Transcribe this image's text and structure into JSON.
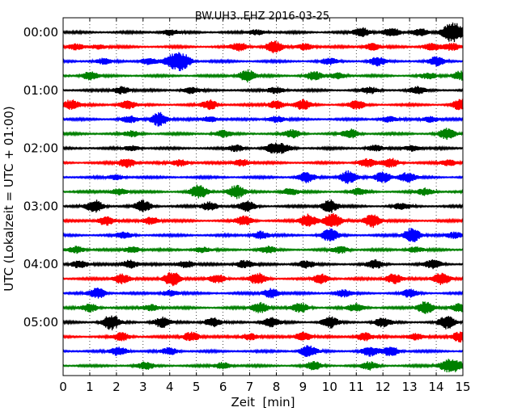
{
  "chart_data": {
    "type": "line",
    "title": "BW.UH3..EHZ 2016-03-25",
    "xlabel": "Zeit  [min]",
    "ylabel": "UTC (Lokalzeit = UTC + 01:00)",
    "xlim": [
      0,
      15
    ],
    "x_ticks": [
      "0",
      "1",
      "2",
      "3",
      "4",
      "5",
      "6",
      "7",
      "8",
      "9",
      "10",
      "11",
      "12",
      "13",
      "14",
      "15"
    ],
    "y_ticks": [
      {
        "label": "00:00",
        "trace": 0
      },
      {
        "label": "01:00",
        "trace": 4
      },
      {
        "label": "02:00",
        "trace": 8
      },
      {
        "label": "03:00",
        "trace": 12
      },
      {
        "label": "04:00",
        "trace": 16
      },
      {
        "label": "05:00",
        "trace": 20
      }
    ],
    "grid": "vertical dotted lines at each minute",
    "color_cycle": [
      "#000000",
      "#ff0000",
      "#0000ff",
      "#008000"
    ],
    "trace_interval_minutes": 15,
    "series": [
      {
        "start": "00:00",
        "color": "#000000",
        "events": [
          [
            4.0,
            0.9
          ],
          [
            7.3,
            0.8
          ],
          [
            11.2,
            1.4
          ],
          [
            12.3,
            1.3
          ],
          [
            13.4,
            1.2
          ],
          [
            14.5,
            2.0
          ],
          [
            14.8,
            1.6
          ]
        ]
      },
      {
        "start": "00:15",
        "color": "#ff0000",
        "events": [
          [
            0.5,
            0.8
          ],
          [
            1.3,
            0.7
          ],
          [
            6.6,
            1.2
          ],
          [
            7.9,
            1.8
          ],
          [
            9.1,
            1.0
          ],
          [
            11.6,
            1.0
          ],
          [
            13.8,
            1.1
          ],
          [
            14.6,
            1.0
          ]
        ]
      },
      {
        "start": "00:30",
        "color": "#0000ff",
        "events": [
          [
            1.5,
            0.8
          ],
          [
            3.2,
            1.0
          ],
          [
            4.1,
            1.7
          ],
          [
            4.5,
            2.2
          ],
          [
            10.0,
            0.9
          ],
          [
            11.8,
            1.2
          ],
          [
            14.0,
            1.2
          ]
        ]
      },
      {
        "start": "00:45",
        "color": "#008000",
        "events": [
          [
            1.0,
            1.2
          ],
          [
            6.9,
            1.9
          ],
          [
            9.4,
            1.2
          ],
          [
            10.3,
            0.9
          ],
          [
            13.7,
            0.8
          ],
          [
            14.9,
            1.4
          ]
        ]
      },
      {
        "start": "01:00",
        "color": "#000000",
        "events": [
          [
            2.2,
            1.1
          ],
          [
            4.8,
            0.9
          ],
          [
            8.0,
            1.0
          ],
          [
            11.5,
            0.9
          ],
          [
            13.3,
            1.0
          ]
        ]
      },
      {
        "start": "01:15",
        "color": "#ff0000",
        "events": [
          [
            0.3,
            1.5
          ],
          [
            2.4,
            1.3
          ],
          [
            5.5,
            1.4
          ],
          [
            8.0,
            1.2
          ],
          [
            9.0,
            1.4
          ],
          [
            11.0,
            1.2
          ],
          [
            14.9,
            1.6
          ]
        ]
      },
      {
        "start": "01:30",
        "color": "#0000ff",
        "events": [
          [
            2.5,
            0.9
          ],
          [
            3.6,
            2.1
          ],
          [
            5.5,
            0.8
          ],
          [
            8.0,
            0.9
          ],
          [
            12.2,
            0.8
          ],
          [
            13.8,
            0.9
          ]
        ]
      },
      {
        "start": "01:45",
        "color": "#008000",
        "events": [
          [
            2.6,
            0.8
          ],
          [
            6.0,
            0.9
          ],
          [
            8.6,
            1.1
          ],
          [
            10.8,
            1.3
          ],
          [
            14.4,
            1.5
          ]
        ]
      },
      {
        "start": "02:00",
        "color": "#000000",
        "events": [
          [
            2.6,
            0.7
          ],
          [
            6.5,
            0.9
          ],
          [
            7.9,
            1.3
          ],
          [
            8.3,
            0.9
          ],
          [
            11.7,
            0.8
          ],
          [
            13.1,
            0.9
          ]
        ]
      },
      {
        "start": "02:15",
        "color": "#ff0000",
        "events": [
          [
            2.4,
            1.5
          ],
          [
            4.4,
            1.0
          ],
          [
            6.7,
            1.1
          ],
          [
            11.4,
            1.2
          ],
          [
            12.3,
            1.3
          ],
          [
            14.5,
            0.9
          ]
        ]
      },
      {
        "start": "02:30",
        "color": "#0000ff",
        "events": [
          [
            2.0,
            0.7
          ],
          [
            9.1,
            1.5
          ],
          [
            10.7,
            1.9
          ],
          [
            12.0,
            1.6
          ],
          [
            12.9,
            1.4
          ]
        ]
      },
      {
        "start": "02:45",
        "color": "#008000",
        "events": [
          [
            2.1,
            1.0
          ],
          [
            5.1,
            2.0
          ],
          [
            6.5,
            2.0
          ],
          [
            8.5,
            1.0
          ],
          [
            11.1,
            0.9
          ],
          [
            13.6,
            1.0
          ]
        ]
      },
      {
        "start": "03:00",
        "color": "#000000",
        "events": [
          [
            1.2,
            1.8
          ],
          [
            3.0,
            1.6
          ],
          [
            5.5,
            1.3
          ],
          [
            6.9,
            1.4
          ],
          [
            10.0,
            1.9
          ],
          [
            12.7,
            0.9
          ]
        ]
      },
      {
        "start": "03:15",
        "color": "#ff0000",
        "events": [
          [
            1.6,
            1.4
          ],
          [
            3.3,
            1.2
          ],
          [
            6.8,
            1.3
          ],
          [
            9.2,
            2.0
          ],
          [
            10.1,
            2.2
          ],
          [
            11.6,
            2.0
          ]
        ]
      },
      {
        "start": "03:30",
        "color": "#0000ff",
        "events": [
          [
            2.3,
            0.8
          ],
          [
            7.4,
            1.2
          ],
          [
            10.0,
            1.8
          ],
          [
            13.1,
            2.2
          ],
          [
            14.7,
            0.9
          ]
        ]
      },
      {
        "start": "03:45",
        "color": "#008000",
        "events": [
          [
            0.5,
            1.0
          ],
          [
            2.6,
            0.9
          ],
          [
            5.2,
            0.8
          ],
          [
            7.7,
            0.9
          ],
          [
            10.4,
            1.0
          ],
          [
            13.2,
            0.8
          ]
        ]
      },
      {
        "start": "04:00",
        "color": "#000000",
        "events": [
          [
            0.6,
            1.2
          ],
          [
            2.5,
            1.3
          ],
          [
            4.6,
            1.1
          ],
          [
            6.8,
            1.2
          ],
          [
            9.1,
            1.1
          ],
          [
            11.7,
            1.2
          ],
          [
            13.9,
            1.3
          ]
        ]
      },
      {
        "start": "04:15",
        "color": "#ff0000",
        "events": [
          [
            2.2,
            1.5
          ],
          [
            4.1,
            2.2
          ],
          [
            5.8,
            1.3
          ],
          [
            7.3,
            1.6
          ],
          [
            9.7,
            1.4
          ],
          [
            12.4,
            1.5
          ],
          [
            14.2,
            1.9
          ]
        ]
      },
      {
        "start": "04:30",
        "color": "#0000ff",
        "events": [
          [
            1.3,
            1.5
          ],
          [
            4.0,
            0.9
          ],
          [
            7.8,
            1.4
          ],
          [
            10.5,
            1.0
          ],
          [
            13.0,
            1.1
          ]
        ]
      },
      {
        "start": "04:45",
        "color": "#008000",
        "events": [
          [
            1.0,
            1.2
          ],
          [
            3.3,
            1.0
          ],
          [
            7.4,
            1.6
          ],
          [
            8.9,
            1.4
          ],
          [
            11.0,
            1.1
          ],
          [
            13.6,
            1.9
          ],
          [
            14.9,
            1.2
          ]
        ]
      },
      {
        "start": "05:00",
        "color": "#000000",
        "events": [
          [
            1.8,
            2.2
          ],
          [
            3.7,
            1.5
          ],
          [
            5.6,
            1.3
          ],
          [
            7.8,
            1.4
          ],
          [
            10.0,
            1.6
          ],
          [
            12.0,
            1.3
          ],
          [
            14.4,
            1.8
          ]
        ]
      },
      {
        "start": "05:15",
        "color": "#ff0000",
        "events": [
          [
            2.2,
            1.2
          ],
          [
            4.8,
            1.4
          ],
          [
            7.0,
            1.0
          ],
          [
            9.0,
            1.3
          ],
          [
            11.3,
            1.2
          ],
          [
            13.2,
            1.0
          ],
          [
            14.9,
            1.6
          ]
        ]
      },
      {
        "start": "05:30",
        "color": "#0000ff",
        "events": [
          [
            2.1,
            1.3
          ],
          [
            4.0,
            1.0
          ],
          [
            9.2,
            1.6
          ],
          [
            11.5,
            1.3
          ],
          [
            12.3,
            1.5
          ]
        ]
      },
      {
        "start": "05:45",
        "color": "#008000",
        "events": [
          [
            3.1,
            1.0
          ],
          [
            6.0,
            1.0
          ],
          [
            9.4,
            1.1
          ],
          [
            11.5,
            1.1
          ],
          [
            14.4,
            1.6
          ],
          [
            14.8,
            1.2
          ]
        ]
      }
    ]
  }
}
